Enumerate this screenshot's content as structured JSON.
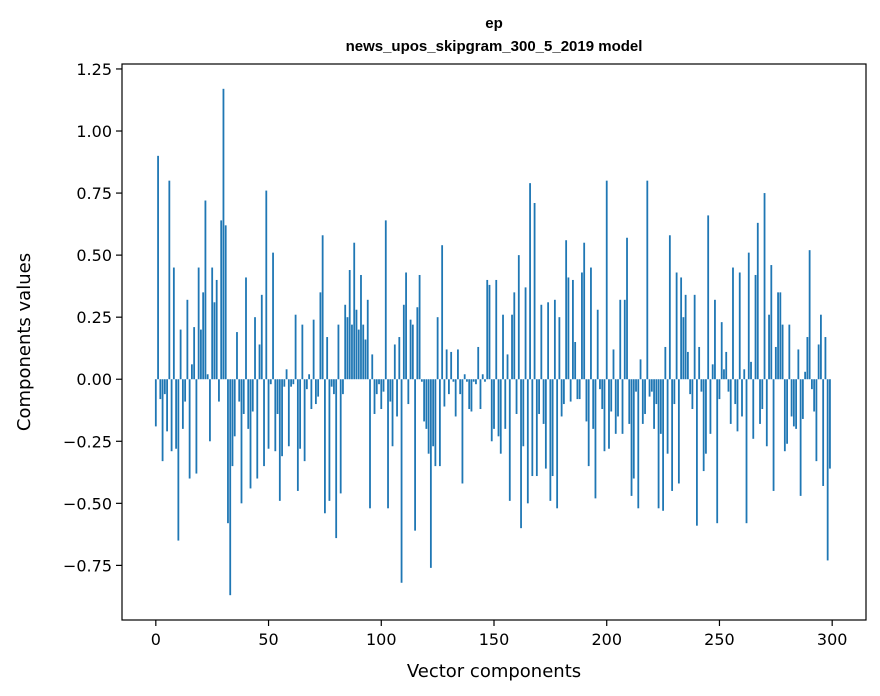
{
  "chart_data": {
    "type": "bar",
    "title": "ep",
    "subtitle": "news_upos_skipgram_300_5_2019 model",
    "xlabel": "Vector components",
    "ylabel": "Components values",
    "xlim": [
      -15,
      315
    ],
    "ylim": [
      -0.97,
      1.27
    ],
    "xticks": [
      0,
      50,
      100,
      150,
      200,
      250,
      300
    ],
    "xtick_labels": [
      "0",
      "50",
      "100",
      "150",
      "200",
      "250",
      "300"
    ],
    "yticks": [
      -0.75,
      -0.5,
      -0.25,
      0.0,
      0.25,
      0.5,
      0.75,
      1.0,
      1.25
    ],
    "ytick_labels": [
      "−0.75",
      "−0.50",
      "−0.25",
      "0.00",
      "0.25",
      "0.50",
      "0.75",
      "1.00",
      "1.25"
    ],
    "bar_color": "#1f77b4",
    "x": [
      0,
      1,
      2,
      3,
      4,
      5,
      6,
      7,
      8,
      9,
      10,
      11,
      12,
      13,
      14,
      15,
      16,
      17,
      18,
      19,
      20,
      21,
      22,
      23,
      24,
      25,
      26,
      27,
      28,
      29,
      30,
      31,
      32,
      33,
      34,
      35,
      36,
      37,
      38,
      39,
      40,
      41,
      42,
      43,
      44,
      45,
      46,
      47,
      48,
      49,
      50,
      51,
      52,
      53,
      54,
      55,
      56,
      57,
      58,
      59,
      60,
      61,
      62,
      63,
      64,
      65,
      66,
      67,
      68,
      69,
      70,
      71,
      72,
      73,
      74,
      75,
      76,
      77,
      78,
      79,
      80,
      81,
      82,
      83,
      84,
      85,
      86,
      87,
      88,
      89,
      90,
      91,
      92,
      93,
      94,
      95,
      96,
      97,
      98,
      99,
      100,
      101,
      102,
      103,
      104,
      105,
      106,
      107,
      108,
      109,
      110,
      111,
      112,
      113,
      114,
      115,
      116,
      117,
      118,
      119,
      120,
      121,
      122,
      123,
      124,
      125,
      126,
      127,
      128,
      129,
      130,
      131,
      132,
      133,
      134,
      135,
      136,
      137,
      138,
      139,
      140,
      141,
      142,
      143,
      144,
      145,
      146,
      147,
      148,
      149,
      150,
      151,
      152,
      153,
      154,
      155,
      156,
      157,
      158,
      159,
      160,
      161,
      162,
      163,
      164,
      165,
      166,
      167,
      168,
      169,
      170,
      171,
      172,
      173,
      174,
      175,
      176,
      177,
      178,
      179,
      180,
      181,
      182,
      183,
      184,
      185,
      186,
      187,
      188,
      189,
      190,
      191,
      192,
      193,
      194,
      195,
      196,
      197,
      198,
      199,
      200,
      201,
      202,
      203,
      204,
      205,
      206,
      207,
      208,
      209,
      210,
      211,
      212,
      213,
      214,
      215,
      216,
      217,
      218,
      219,
      220,
      221,
      222,
      223,
      224,
      225,
      226,
      227,
      228,
      229,
      230,
      231,
      232,
      233,
      234,
      235,
      236,
      237,
      238,
      239,
      240,
      241,
      242,
      243,
      244,
      245,
      246,
      247,
      248,
      249,
      250,
      251,
      252,
      253,
      254,
      255,
      256,
      257,
      258,
      259,
      260,
      261,
      262,
      263,
      264,
      265,
      266,
      267,
      268,
      269,
      270,
      271,
      272,
      273,
      274,
      275,
      276,
      277,
      278,
      279,
      280,
      281,
      282,
      283,
      284,
      285,
      286,
      287,
      288,
      289,
      290,
      291,
      292,
      293,
      294,
      295,
      296,
      297,
      298,
      299
    ],
    "values": [
      -0.19,
      0.9,
      -0.08,
      -0.33,
      -0.06,
      -0.21,
      0.8,
      -0.29,
      0.45,
      -0.28,
      -0.65,
      0.2,
      -0.2,
      -0.09,
      0.32,
      -0.4,
      0.06,
      0.21,
      -0.38,
      0.45,
      0.2,
      0.35,
      0.72,
      0.02,
      -0.25,
      0.45,
      0.31,
      0.4,
      -0.09,
      0.64,
      1.17,
      0.62,
      -0.58,
      -0.87,
      -0.35,
      -0.23,
      0.19,
      -0.09,
      -0.5,
      -0.14,
      0.41,
      -0.2,
      -0.44,
      -0.13,
      0.25,
      -0.4,
      0.14,
      0.34,
      -0.35,
      0.76,
      -0.28,
      -0.02,
      0.51,
      -0.29,
      -0.14,
      -0.49,
      -0.31,
      -0.03,
      0.04,
      -0.27,
      -0.03,
      -0.02,
      0.26,
      -0.45,
      -0.28,
      0.22,
      -0.33,
      -0.04,
      0.02,
      -0.12,
      0.24,
      -0.1,
      -0.07,
      0.35,
      0.58,
      -0.54,
      0.17,
      -0.49,
      -0.03,
      -0.06,
      -0.64,
      0.22,
      -0.46,
      -0.06,
      0.3,
      0.25,
      0.44,
      0.22,
      0.55,
      0.28,
      0.2,
      0.42,
      0.22,
      0.16,
      0.32,
      -0.52,
      0.1,
      -0.14,
      -0.06,
      -0.02,
      -0.12,
      -0.05,
      0.64,
      -0.52,
      -0.09,
      -0.27,
      0.14,
      -0.15,
      0.17,
      -0.82,
      0.3,
      0.43,
      -0.1,
      0.24,
      0.22,
      -0.61,
      0.29,
      0.42,
      -0.01,
      -0.17,
      -0.2,
      -0.3,
      -0.76,
      -0.27,
      -0.35,
      0.25,
      -0.35,
      0.54,
      -0.11,
      0.12,
      -0.06,
      0.11,
      -0.01,
      -0.15,
      0.12,
      -0.06,
      -0.42,
      0.02,
      -0.01,
      -0.12,
      -0.13,
      -0.01,
      -0.02,
      0.13,
      -0.12,
      0.02,
      -0.01,
      0.4,
      0.38,
      -0.25,
      -0.2,
      0.4,
      -0.23,
      -0.3,
      0.26,
      -0.2,
      0.1,
      -0.49,
      0.26,
      0.35,
      -0.14,
      0.5,
      -0.6,
      -0.27,
      0.37,
      -0.5,
      0.79,
      -0.39,
      0.71,
      -0.39,
      -0.14,
      0.3,
      -0.18,
      -0.36,
      0.31,
      -0.49,
      -0.39,
      0.32,
      -0.52,
      0.25,
      -0.15,
      -0.1,
      0.56,
      0.41,
      -0.09,
      0.4,
      0.15,
      -0.08,
      -0.08,
      0.43,
      0.55,
      -0.17,
      -0.35,
      0.45,
      -0.2,
      -0.48,
      0.28,
      -0.04,
      -0.12,
      -0.29,
      0.8,
      -0.28,
      -0.13,
      0.12,
      -0.22,
      -0.15,
      0.32,
      -0.22,
      0.32,
      0.57,
      -0.18,
      -0.47,
      -0.4,
      -0.05,
      -0.52,
      0.08,
      -0.18,
      -0.14,
      0.8,
      -0.07,
      -0.05,
      -0.2,
      -0.1,
      -0.52,
      -0.22,
      -0.53,
      0.13,
      -0.3,
      0.58,
      -0.45,
      -0.1,
      0.43,
      -0.42,
      0.41,
      0.25,
      0.34,
      0.11,
      -0.06,
      -0.12,
      0.34,
      -0.59,
      0.13,
      -0.05,
      -0.37,
      -0.3,
      0.66,
      -0.22,
      0.06,
      0.32,
      -0.58,
      -0.08,
      0.23,
      0.04,
      0.11,
      -0.05,
      -0.18,
      0.45,
      -0.1,
      -0.21,
      0.43,
      -0.15,
      0.04,
      -0.58,
      0.51,
      0.07,
      -0.24,
      0.42,
      0.63,
      -0.18,
      -0.12,
      0.75,
      -0.27,
      0.26,
      0.46,
      -0.45,
      0.13,
      0.35,
      0.35,
      0.22,
      -0.29,
      -0.26,
      0.22,
      -0.15,
      -0.19,
      -0.2,
      0.12,
      -0.47,
      -0.16,
      0.03,
      0.17,
      0.52,
      -0.04,
      -0.13,
      -0.33,
      0.14,
      0.26,
      -0.43,
      0.17,
      -0.73,
      -0.36
    ]
  }
}
